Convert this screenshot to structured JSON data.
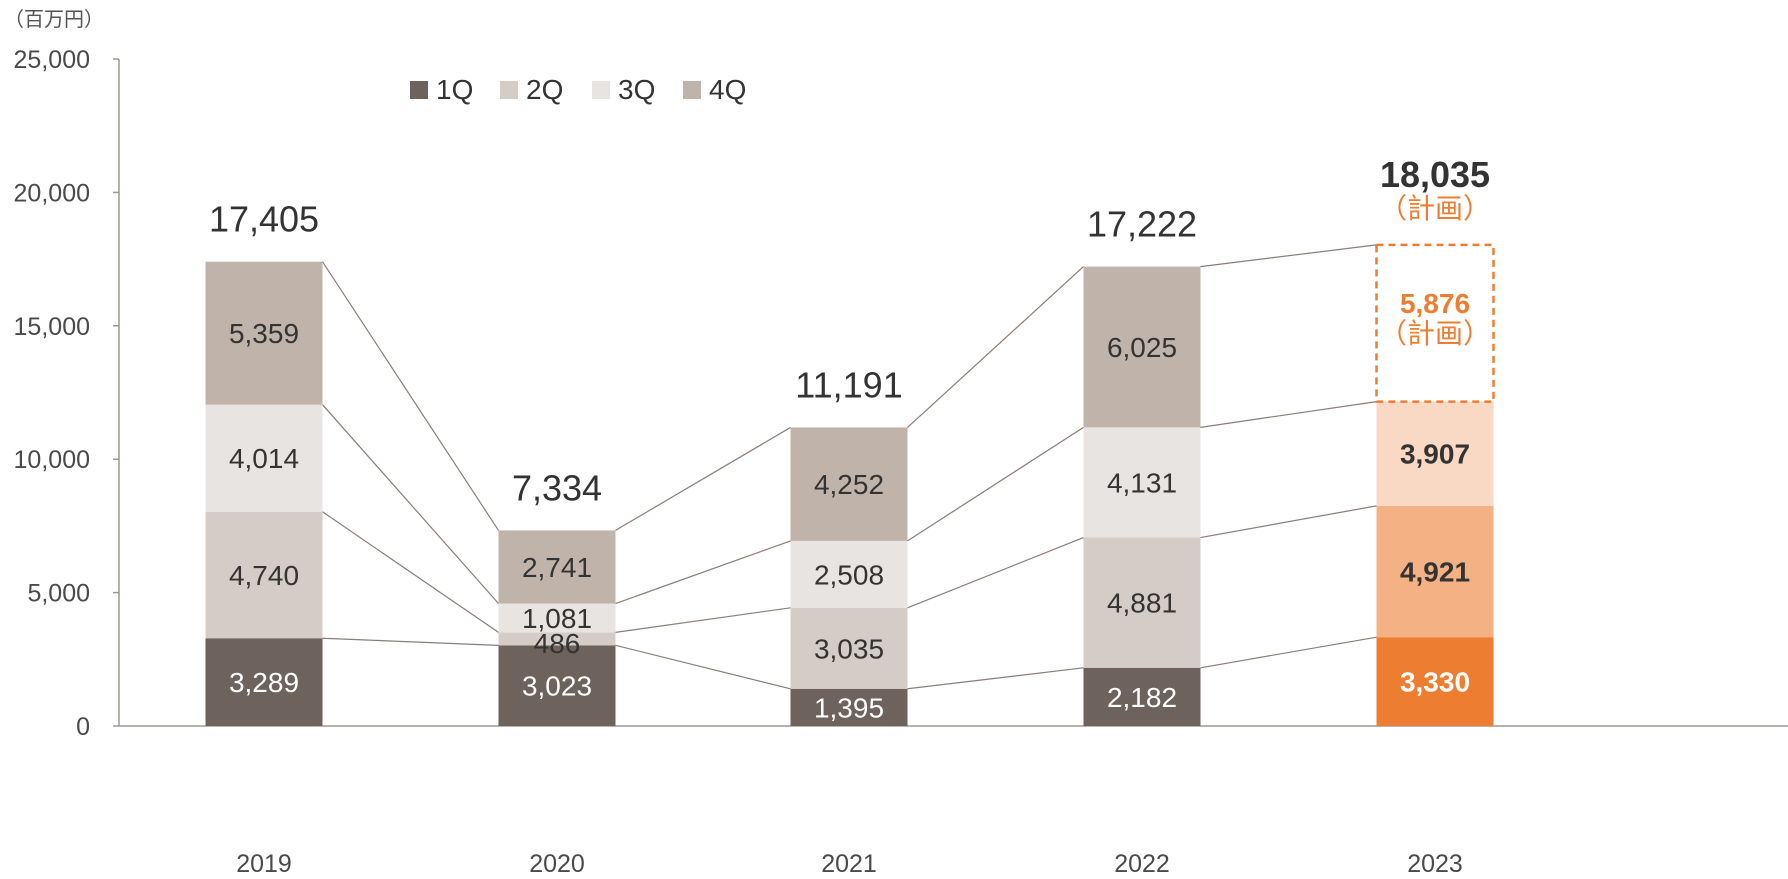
{
  "chart_data": {
    "type": "bar",
    "stacked": true,
    "unit_label": "（百万円）",
    "categories": [
      "2019",
      "2020",
      "2021",
      "2022",
      "2023"
    ],
    "series": [
      {
        "name": "1Q",
        "values": [
          3289,
          3023,
          1395,
          2182,
          3330
        ],
        "labels": [
          "3,289",
          "3,023",
          "1,395",
          "2,182",
          "3,330"
        ]
      },
      {
        "name": "2Q",
        "values": [
          4740,
          486,
          3035,
          4881,
          4921
        ],
        "labels": [
          "4,740",
          "486",
          "3,035",
          "4,881",
          "4,921"
        ]
      },
      {
        "name": "3Q",
        "values": [
          4014,
          1081,
          2508,
          4131,
          3907
        ],
        "labels": [
          "4,014",
          "1,081",
          "2,508",
          "4,131",
          "3,907"
        ]
      },
      {
        "name": "4Q",
        "values": [
          5359,
          2741,
          4252,
          6025,
          5876
        ],
        "labels": [
          "5,359",
          "2,741",
          "4,252",
          "6,025",
          "5,876"
        ]
      }
    ],
    "totals": [
      17405,
      7334,
      11191,
      17222,
      18035
    ],
    "total_labels": [
      "17,405",
      "7,334",
      "11,191",
      "17,222",
      "18,035"
    ],
    "plan_note": "（計画）",
    "ylim": [
      0,
      25000
    ],
    "y_ticks": [
      0,
      5000,
      10000,
      15000,
      20000,
      25000
    ],
    "y_tick_labels": [
      "0",
      "5,000",
      "10,000",
      "15,000",
      "20,000",
      "25,000"
    ],
    "legend_position": "top-left",
    "grid": false,
    "colors": {
      "q1": "#6e625c",
      "q2": "#d4ccc7",
      "q3": "#e8e4e1",
      "q4": "#c0b4aa",
      "plan_q1": "#ed7d31",
      "plan_q2": "#f4b183",
      "plan_q3": "#f9d8c4",
      "accent": "#ed7d31",
      "axis": "#a09890",
      "connector": "#8a7e78"
    }
  }
}
